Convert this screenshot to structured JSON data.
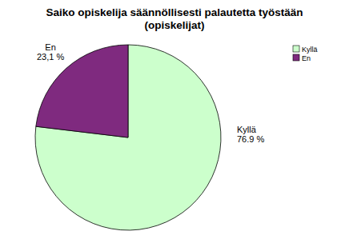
{
  "chart_data": {
    "type": "pie",
    "title": "Saiko opiskelija säännöllisesti palautetta työstään\n(opiskelijat)",
    "categories": [
      "Kyllä",
      "En"
    ],
    "values": [
      76.9,
      23.1
    ],
    "value_labels": [
      "76.9 %",
      "23,1 %"
    ],
    "colors": [
      "#ccffcc",
      "#7f2a7f"
    ],
    "data_labels": true,
    "legend": "upper right"
  }
}
